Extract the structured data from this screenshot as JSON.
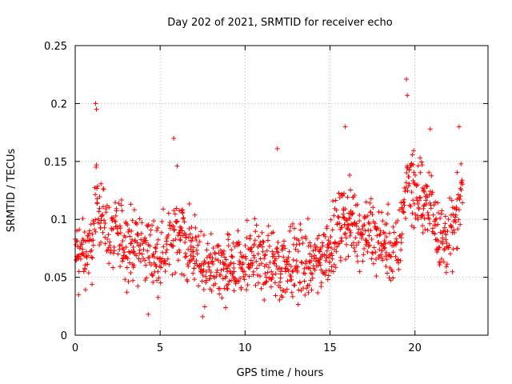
{
  "chart_data": {
    "type": "scatter",
    "title": "Day 202 of 2021, SRMTID for receiver echo",
    "xlabel": "GPS time / hours",
    "ylabel": "SRMTID / TECUs",
    "xlim": [
      0,
      24.3
    ],
    "ylim": [
      0,
      0.25
    ],
    "x_ticks": [
      0,
      5,
      10,
      15,
      20
    ],
    "x_tick_labels": [
      "0",
      "5",
      "10",
      "15",
      "20"
    ],
    "y_ticks": [
      0,
      0.05,
      0.1,
      0.15,
      0.2,
      0.25
    ],
    "y_tick_labels": [
      "0",
      "0.05",
      "0.1",
      "0.15",
      "0.2",
      "0.25"
    ],
    "grid": true,
    "marker": "plus",
    "series": [
      {
        "name": "SRMTID",
        "color": "#ff0000",
        "x_start": 0.0,
        "x_step": 0.025,
        "baseline_profile": {
          "hours": [
            0,
            1,
            1.2,
            2,
            3,
            4,
            5,
            6,
            7,
            8,
            9,
            10,
            11,
            12,
            13,
            14,
            15,
            16,
            17,
            18,
            19,
            19.6,
            20,
            21,
            21.5,
            22,
            22.5,
            22.8
          ],
          "level": [
            0.07,
            0.075,
            0.12,
            0.09,
            0.08,
            0.075,
            0.07,
            0.09,
            0.07,
            0.055,
            0.055,
            0.06,
            0.065,
            0.06,
            0.065,
            0.06,
            0.075,
            0.1,
            0.09,
            0.08,
            0.07,
            0.14,
            0.12,
            0.11,
            0.08,
            0.08,
            0.1,
            0.14
          ]
        },
        "notable_points": [
          {
            "x": 1.2,
            "y": 0.2
          },
          {
            "x": 1.25,
            "y": 0.195
          },
          {
            "x": 19.5,
            "y": 0.221
          },
          {
            "x": 19.55,
            "y": 0.207
          },
          {
            "x": 15.9,
            "y": 0.18
          },
          {
            "x": 5.8,
            "y": 0.17
          },
          {
            "x": 20.9,
            "y": 0.178
          },
          {
            "x": 22.6,
            "y": 0.18
          },
          {
            "x": 6.0,
            "y": 0.146
          },
          {
            "x": 7.5,
            "y": 0.016
          },
          {
            "x": 4.3,
            "y": 0.018
          },
          {
            "x": 0.2,
            "y": 0.035
          },
          {
            "x": 11.9,
            "y": 0.161
          }
        ]
      }
    ]
  }
}
